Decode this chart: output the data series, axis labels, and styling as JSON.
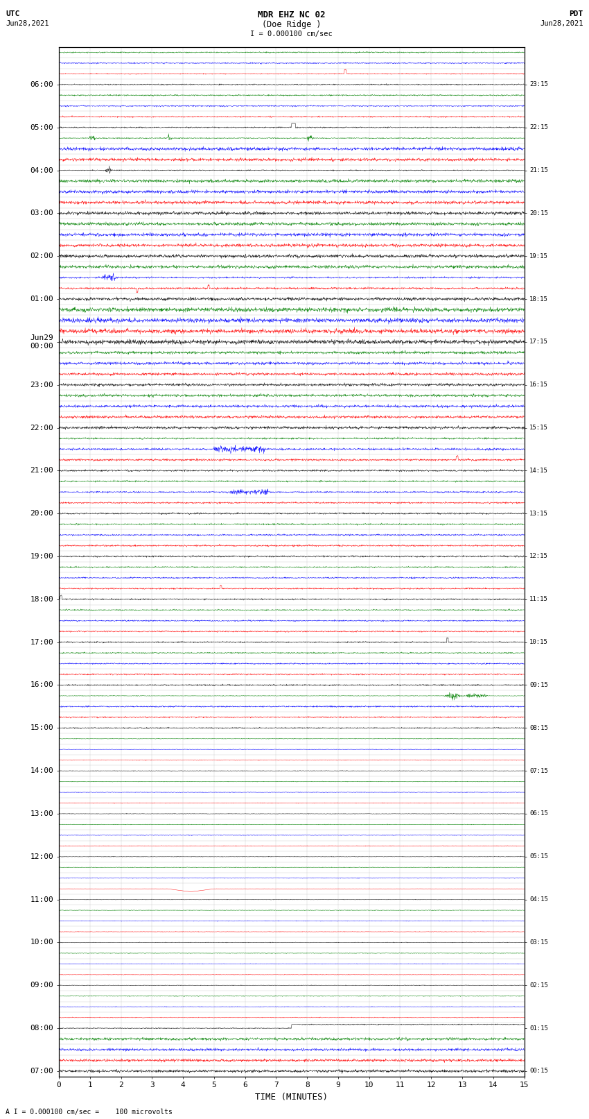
{
  "title_line1": "MDR EHZ NC 02",
  "title_line2": "(Doe Ridge )",
  "title_scale": "I = 0.000100 cm/sec",
  "label_left_1": "UTC",
  "label_left_2": "Jun28,2021",
  "label_right_1": "PDT",
  "label_right_2": "Jun28,2021",
  "xlabel": "TIME (MINUTES)",
  "footer": "A I = 0.000100 cm/sec =    100 microvolts",
  "utc_hours": [
    "07:00",
    "08:00",
    "09:00",
    "10:00",
    "11:00",
    "12:00",
    "13:00",
    "14:00",
    "15:00",
    "16:00",
    "17:00",
    "18:00",
    "19:00",
    "20:00",
    "21:00",
    "22:00",
    "23:00",
    "Jun29\n00:00",
    "01:00",
    "02:00",
    "03:00",
    "04:00",
    "05:00",
    "06:00"
  ],
  "pdt_hours": [
    "00:15",
    "01:15",
    "02:15",
    "03:15",
    "04:15",
    "05:15",
    "06:15",
    "07:15",
    "08:15",
    "09:15",
    "10:15",
    "11:15",
    "12:15",
    "13:15",
    "14:15",
    "15:15",
    "16:15",
    "17:15",
    "18:15",
    "19:15",
    "20:15",
    "21:15",
    "22:15",
    "23:15"
  ],
  "n_hours": 24,
  "traces_per_hour": 4,
  "colors_per_group": [
    "black",
    "red",
    "blue",
    "green"
  ],
  "bg_color": "#ffffff",
  "xmin": 0,
  "xmax": 15,
  "xticks": [
    0,
    1,
    2,
    3,
    4,
    5,
    6,
    7,
    8,
    9,
    10,
    11,
    12,
    13,
    14,
    15
  ]
}
